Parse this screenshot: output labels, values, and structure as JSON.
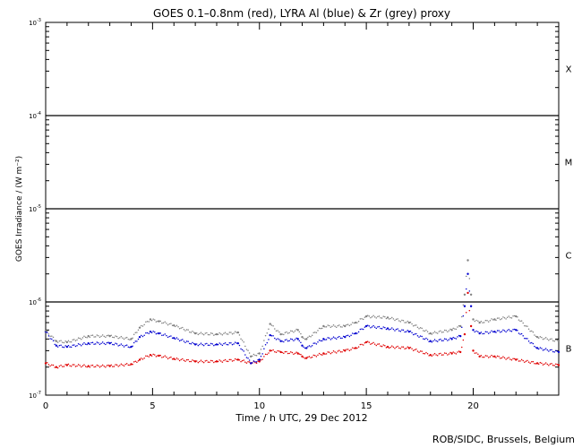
{
  "chart_data": {
    "type": "scatter",
    "title": "GOES 0.1–0.8nm (red), LYRA Al (blue) & Zr (grey) proxy",
    "xlabel": "Time / h UTC, 29 Dec 2012",
    "ylabel": "GOES Irradiance / (W m⁻²)",
    "xlim": [
      0,
      24
    ],
    "ylim": [
      1e-07,
      0.001
    ],
    "yscale": "log",
    "x_ticks": [
      0,
      5,
      10,
      15,
      20
    ],
    "y_tick_labels": [
      {
        "value": 1e-07,
        "mantissa": "10",
        "exponent": "-7"
      },
      {
        "value": 1e-06,
        "mantissa": "10",
        "exponent": "-6"
      },
      {
        "value": 1e-05,
        "mantissa": "10",
        "exponent": "-5"
      },
      {
        "value": 0.0001,
        "mantissa": "10",
        "exponent": "-4"
      },
      {
        "value": 0.001,
        "mantissa": "10",
        "exponent": "-3"
      }
    ],
    "flare_class_lines": [
      1e-06,
      1e-05,
      0.0001
    ],
    "flare_classes": [
      {
        "label": "X",
        "value": 0.00032
      },
      {
        "label": "M",
        "value": 3.2e-05
      },
      {
        "label": "C",
        "value": 3.2e-06
      },
      {
        "label": "B",
        "value": 3.2e-07
      }
    ],
    "series": [
      {
        "color": "#e00000",
        "x": [
          0,
          0.5,
          1,
          2,
          3,
          4,
          4.4,
          4.9,
          5.3,
          6,
          7,
          8,
          9,
          9.6,
          10,
          10.5,
          11,
          11.8,
          12,
          12.2,
          13,
          14,
          14.5,
          15,
          16,
          17,
          18,
          19,
          19.4,
          19.6,
          19.75,
          19.9,
          20,
          20.3,
          21,
          22,
          23,
          24
        ],
        "y": [
          2.2e-07,
          2e-07,
          2.1e-07,
          2.05e-07,
          2.05e-07,
          2.15e-07,
          2.4e-07,
          2.7e-07,
          2.65e-07,
          2.45e-07,
          2.3e-07,
          2.3e-07,
          2.4e-07,
          2.2e-07,
          2.3e-07,
          3e-07,
          2.9e-07,
          2.8e-07,
          2.6e-07,
          2.5e-07,
          2.8e-07,
          3e-07,
          3.2e-07,
          3.7e-07,
          3.3e-07,
          3.2e-07,
          2.7e-07,
          2.8e-07,
          2.9e-07,
          4.5e-07,
          1.25e-06,
          5.5e-07,
          3e-07,
          2.6e-07,
          2.6e-07,
          2.4e-07,
          2.2e-07,
          2.1e-07
        ]
      },
      {
        "color": "#0000d0",
        "x": [
          0,
          0.5,
          1,
          2,
          3,
          4,
          4.4,
          4.9,
          5.3,
          6,
          7,
          8,
          9,
          9.6,
          10,
          10.5,
          11,
          11.8,
          12,
          12.2,
          13,
          14,
          14.5,
          15,
          16,
          17,
          18,
          19,
          19.4,
          19.6,
          19.75,
          19.9,
          20,
          20.3,
          21,
          22,
          23,
          24
        ],
        "y": [
          4.8e-07,
          3.4e-07,
          3.3e-07,
          3.6e-07,
          3.6e-07,
          3.3e-07,
          4.2e-07,
          4.8e-07,
          4.6e-07,
          4.1e-07,
          3.5e-07,
          3.5e-07,
          3.6e-07,
          2.2e-07,
          2.4e-07,
          4.4e-07,
          3.8e-07,
          4e-07,
          3.4e-07,
          3.2e-07,
          4e-07,
          4.2e-07,
          4.6e-07,
          5.5e-07,
          5.2e-07,
          4.8e-07,
          3.8e-07,
          4e-07,
          4.3e-07,
          9e-07,
          2e-06,
          9e-07,
          5e-07,
          4.6e-07,
          4.8e-07,
          5e-07,
          3.2e-07,
          2.9e-07
        ]
      },
      {
        "color": "#808080",
        "x": [
          0,
          0.5,
          1,
          2,
          3,
          4,
          4.4,
          4.9,
          5.3,
          6,
          7,
          8,
          9,
          9.6,
          10,
          10.5,
          11,
          11.8,
          12,
          12.2,
          13,
          14,
          14.5,
          15,
          16,
          17,
          18,
          19,
          19.4,
          19.6,
          19.75,
          19.9,
          20,
          20.3,
          21,
          22,
          23,
          24
        ],
        "y": [
          4.9e-07,
          3.8e-07,
          3.7e-07,
          4.3e-07,
          4.3e-07,
          4e-07,
          5.3e-07,
          6.5e-07,
          6.2e-07,
          5.6e-07,
          4.6e-07,
          4.5e-07,
          4.7e-07,
          2.6e-07,
          2.8e-07,
          5.8e-07,
          4.5e-07,
          5e-07,
          4.2e-07,
          4e-07,
          5.5e-07,
          5.5e-07,
          6e-07,
          7e-07,
          6.8e-07,
          6e-07,
          4.6e-07,
          5e-07,
          5.5e-07,
          1.2e-06,
          2.8e-06,
          1.2e-06,
          6.5e-07,
          6e-07,
          6.5e-07,
          7e-07,
          4.2e-07,
          3.8e-07
        ]
      }
    ]
  },
  "footer": {
    "credit": "ROB/SIDC, Brussels, Belgium"
  }
}
